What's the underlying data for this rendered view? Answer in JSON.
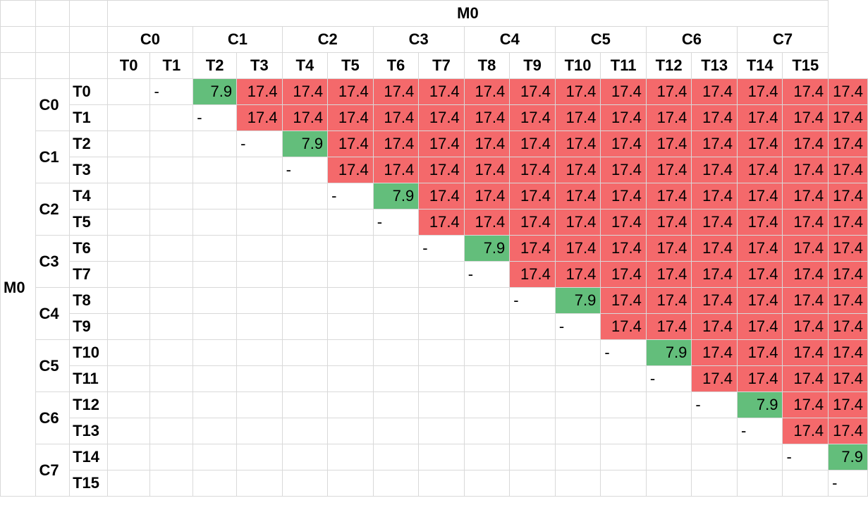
{
  "colors": {
    "high": "#f4696b",
    "low": "#63be7b",
    "grid": "#d9d9d9"
  },
  "top_header": "M0",
  "side_header": "M0",
  "groups": [
    "C0",
    "C1",
    "C2",
    "C3",
    "C4",
    "C5",
    "C6",
    "C7"
  ],
  "threads": [
    "T0",
    "T1",
    "T2",
    "T3",
    "T4",
    "T5",
    "T6",
    "T7",
    "T8",
    "T9",
    "T10",
    "T11",
    "T12",
    "T13",
    "T14",
    "T15"
  ],
  "diagonal_mark": "-",
  "matrix": [
    [
      null,
      "-",
      "7.9",
      "17.4",
      "17.4",
      "17.4",
      "17.4",
      "17.4",
      "17.4",
      "17.4",
      "17.4",
      "17.4",
      "17.4",
      "17.4",
      "17.4",
      "17.4",
      "17.4"
    ],
    [
      null,
      null,
      "-",
      "17.4",
      "17.4",
      "17.4",
      "17.4",
      "17.4",
      "17.4",
      "17.4",
      "17.4",
      "17.4",
      "17.4",
      "17.4",
      "17.4",
      "17.4",
      "17.4"
    ],
    [
      null,
      null,
      null,
      "-",
      "7.9",
      "17.4",
      "17.4",
      "17.4",
      "17.4",
      "17.4",
      "17.4",
      "17.4",
      "17.4",
      "17.4",
      "17.4",
      "17.4",
      "17.4"
    ],
    [
      null,
      null,
      null,
      null,
      "-",
      "17.4",
      "17.4",
      "17.4",
      "17.4",
      "17.4",
      "17.4",
      "17.4",
      "17.4",
      "17.4",
      "17.4",
      "17.4",
      "17.4"
    ],
    [
      null,
      null,
      null,
      null,
      null,
      "-",
      "7.9",
      "17.4",
      "17.4",
      "17.4",
      "17.4",
      "17.4",
      "17.4",
      "17.4",
      "17.4",
      "17.4",
      "17.4"
    ],
    [
      null,
      null,
      null,
      null,
      null,
      null,
      "-",
      "17.4",
      "17.4",
      "17.4",
      "17.4",
      "17.4",
      "17.4",
      "17.4",
      "17.4",
      "17.4",
      "17.4"
    ],
    [
      null,
      null,
      null,
      null,
      null,
      null,
      null,
      "-",
      "7.9",
      "17.4",
      "17.4",
      "17.4",
      "17.4",
      "17.4",
      "17.4",
      "17.4",
      "17.4"
    ],
    [
      null,
      null,
      null,
      null,
      null,
      null,
      null,
      null,
      "-",
      "17.4",
      "17.4",
      "17.4",
      "17.4",
      "17.4",
      "17.4",
      "17.4",
      "17.4"
    ],
    [
      null,
      null,
      null,
      null,
      null,
      null,
      null,
      null,
      null,
      "-",
      "7.9",
      "17.4",
      "17.4",
      "17.4",
      "17.4",
      "17.4",
      "17.4"
    ],
    [
      null,
      null,
      null,
      null,
      null,
      null,
      null,
      null,
      null,
      null,
      "-",
      "17.4",
      "17.4",
      "17.4",
      "17.4",
      "17.4",
      "17.4"
    ],
    [
      null,
      null,
      null,
      null,
      null,
      null,
      null,
      null,
      null,
      null,
      null,
      "-",
      "7.9",
      "17.4",
      "17.4",
      "17.4",
      "17.4"
    ],
    [
      null,
      null,
      null,
      null,
      null,
      null,
      null,
      null,
      null,
      null,
      null,
      null,
      "-",
      "17.4",
      "17.4",
      "17.4",
      "17.4"
    ],
    [
      null,
      null,
      null,
      null,
      null,
      null,
      null,
      null,
      null,
      null,
      null,
      null,
      null,
      "-",
      "7.9",
      "17.4",
      "17.4"
    ],
    [
      null,
      null,
      null,
      null,
      null,
      null,
      null,
      null,
      null,
      null,
      null,
      null,
      null,
      null,
      "-",
      "17.4",
      "17.4"
    ],
    [
      null,
      null,
      null,
      null,
      null,
      null,
      null,
      null,
      null,
      null,
      null,
      null,
      null,
      null,
      null,
      "-",
      "7.9"
    ],
    [
      null,
      null,
      null,
      null,
      null,
      null,
      null,
      null,
      null,
      null,
      null,
      null,
      null,
      null,
      null,
      null,
      "-"
    ]
  ]
}
